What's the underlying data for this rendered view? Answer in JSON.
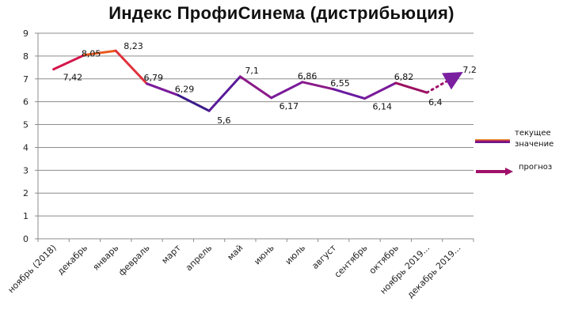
{
  "chart_data": {
    "type": "line",
    "title": "Индекс ПрофиСинема (дистрибьюция)",
    "xlabel": "",
    "ylabel": "",
    "ylim": [
      0,
      9
    ],
    "yticks": [
      0,
      1,
      2,
      3,
      4,
      5,
      6,
      7,
      8,
      9
    ],
    "grid": true,
    "legend_position": "right",
    "categories": [
      "ноябрь (2018)",
      "декабрь",
      "январь",
      "февраль",
      "март",
      "апрель",
      "май",
      "июнь",
      "июль",
      "август",
      "сентябрь",
      "октябрь",
      "ноябрь 2019...",
      "декабрь 2019..."
    ],
    "series": [
      {
        "name": "текущее значение",
        "values": [
          7.42,
          8.05,
          8.23,
          6.79,
          6.29,
          5.6,
          7.1,
          6.17,
          6.86,
          6.55,
          6.14,
          6.82,
          6.4,
          null
        ]
      },
      {
        "name": "прогноз",
        "values": [
          null,
          null,
          null,
          null,
          null,
          null,
          null,
          null,
          null,
          null,
          null,
          null,
          6.4,
          7.2
        ]
      }
    ],
    "data_labels": [
      "7,42",
      "8,05",
      "8,23",
      "6,79",
      "6,29",
      "5,6",
      "7,1",
      "6,17",
      "6,86",
      "6,55",
      "6,14",
      "6,82",
      "6,4",
      "7,2"
    ]
  },
  "legend": {
    "current_label_line1": "текущее",
    "current_label_line2": "значение",
    "forecast_label": "прогноз"
  },
  "colors": {
    "red": "#e0202a",
    "orange": "#f07a1a",
    "purple": "#7a1fa0",
    "navy": "#2a1a8a",
    "magenta": "#a0106a"
  }
}
